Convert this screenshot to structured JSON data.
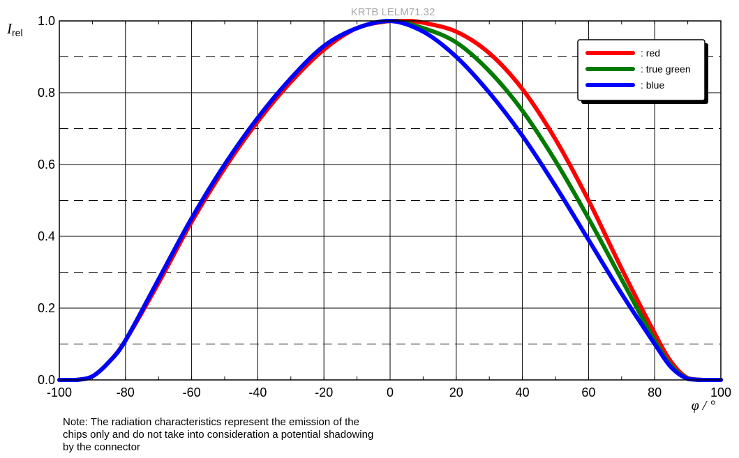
{
  "watermark": "KRTB LELM71.32",
  "axes": {
    "ylabel_main": "I",
    "ylabel_sub": "rel",
    "xlabel": "φ / °"
  },
  "note_lines": [
    "Note: The radiation characteristics represent the emission of the",
    "chips only and do not take into consideration a potential shadowing",
    "by the connector"
  ],
  "colors": {
    "red": "#ff0000",
    "green": "#007a00",
    "blue": "#0000ff",
    "grid": "#000000"
  },
  "chart_data": {
    "type": "line",
    "xlim": [
      -100,
      100
    ],
    "ylim": [
      0,
      1.0
    ],
    "x_ticks": [
      -100,
      -80,
      -60,
      -40,
      -20,
      0,
      20,
      40,
      60,
      80,
      100
    ],
    "x_tick_labels": [
      "-100",
      "-80",
      "-60",
      "-40",
      "-20",
      "0",
      "20",
      "40",
      "60",
      "80",
      "100"
    ],
    "y_ticks": [
      0,
      0.2,
      0.4,
      0.6,
      0.8,
      1.0
    ],
    "y_tick_labels": [
      "0.0",
      "0.2",
      "0.4",
      "0.6",
      "0.8",
      "1.0"
    ],
    "grid": true,
    "legend_position": "top-right",
    "series": [
      {
        "name": ": red",
        "color": "#ff0000",
        "x": [
          -100,
          -95,
          -90,
          -85,
          -80,
          -70,
          -60,
          -50,
          -40,
          -30,
          -20,
          -10,
          0,
          5,
          10,
          20,
          30,
          40,
          50,
          60,
          70,
          80,
          85,
          90,
          95,
          100
        ],
        "y": [
          0,
          0,
          0.01,
          0.05,
          0.11,
          0.27,
          0.44,
          0.59,
          0.72,
          0.83,
          0.92,
          0.98,
          1.0,
          1.0,
          0.995,
          0.97,
          0.91,
          0.81,
          0.67,
          0.5,
          0.31,
          0.13,
          0.05,
          0.005,
          0,
          0
        ]
      },
      {
        "name": ": true green",
        "color": "#007a00",
        "x": [
          -100,
          -95,
          -90,
          -85,
          -80,
          -70,
          -60,
          -50,
          -40,
          -30,
          -20,
          -10,
          0,
          10,
          20,
          30,
          40,
          50,
          60,
          70,
          80,
          85,
          90,
          95,
          100
        ],
        "y": [
          0,
          0,
          0.01,
          0.05,
          0.11,
          0.28,
          0.45,
          0.6,
          0.73,
          0.84,
          0.93,
          0.98,
          1.0,
          0.98,
          0.94,
          0.86,
          0.75,
          0.61,
          0.45,
          0.28,
          0.11,
          0.04,
          0.004,
          0,
          0
        ]
      },
      {
        "name": ": blue",
        "color": "#0000ff",
        "x": [
          -100,
          -95,
          -90,
          -85,
          -80,
          -70,
          -60,
          -50,
          -40,
          -30,
          -20,
          -10,
          0,
          10,
          20,
          30,
          40,
          50,
          60,
          70,
          80,
          85,
          90,
          95,
          100
        ],
        "y": [
          0,
          0,
          0.01,
          0.05,
          0.11,
          0.28,
          0.45,
          0.6,
          0.73,
          0.84,
          0.93,
          0.98,
          1.0,
          0.97,
          0.9,
          0.8,
          0.68,
          0.54,
          0.39,
          0.24,
          0.1,
          0.035,
          0.003,
          0,
          0
        ]
      }
    ]
  }
}
